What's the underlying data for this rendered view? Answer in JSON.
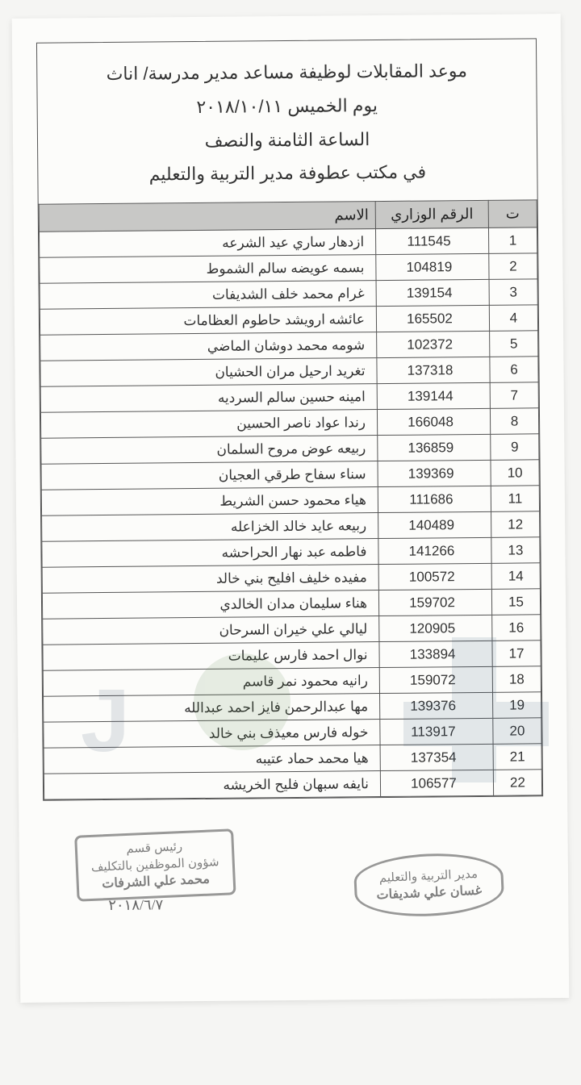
{
  "header": {
    "line1": "موعد المقابلات لوظيفة مساعد مدير مدرسة/ اناث",
    "line2": "يوم الخميس ٢٠١٨/١٠/١١",
    "line3": "الساعة الثامنة والنصف",
    "line4": "في مكتب عطوفة مدير التربية والتعليم"
  },
  "table": {
    "columns": {
      "seq": "ت",
      "ministry_no": "الرقم الوزاري",
      "name": "الاسم"
    },
    "rows": [
      {
        "seq": "1",
        "num": "111545",
        "name": "ازدهار ساري عيد الشرعه"
      },
      {
        "seq": "2",
        "num": "104819",
        "name": "بسمه عويضه سالم الشموط"
      },
      {
        "seq": "3",
        "num": "139154",
        "name": "غرام محمد خلف الشديفات"
      },
      {
        "seq": "4",
        "num": "165502",
        "name": "عائشه ارويشد حاطوم العظامات"
      },
      {
        "seq": "5",
        "num": "102372",
        "name": "شومه محمد دوشان الماضي"
      },
      {
        "seq": "6",
        "num": "137318",
        "name": "تغريد ارحيل مران الحشيان"
      },
      {
        "seq": "7",
        "num": "139144",
        "name": "امينه حسين سالم السرديه"
      },
      {
        "seq": "8",
        "num": "166048",
        "name": "رندا عواد ناصر الحسين"
      },
      {
        "seq": "9",
        "num": "136859",
        "name": "ربيعه عوض مروح السلمان"
      },
      {
        "seq": "10",
        "num": "139369",
        "name": "سناء سفاح طرقي العجيان"
      },
      {
        "seq": "11",
        "num": "111686",
        "name": "هياء محمود حسن الشريط"
      },
      {
        "seq": "12",
        "num": "140489",
        "name": "ربيعه عايد خالد الخزاعله"
      },
      {
        "seq": "13",
        "num": "141266",
        "name": "فاطمه عبد نهار الحراحشه"
      },
      {
        "seq": "14",
        "num": "100572",
        "name": "مفيده خليف افليح بني خالد"
      },
      {
        "seq": "15",
        "num": "159702",
        "name": "هناء سليمان مدان الخالدي"
      },
      {
        "seq": "16",
        "num": "120905",
        "name": "ليالي علي خيران السرحان"
      },
      {
        "seq": "17",
        "num": "133894",
        "name": "نوال احمد فارس عليمات"
      },
      {
        "seq": "18",
        "num": "159072",
        "name": "رانيه محمود نمر قاسم"
      },
      {
        "seq": "19",
        "num": "139376",
        "name": "مها عبدالرحمن فايز احمد عبدالله"
      },
      {
        "seq": "20",
        "num": "113917",
        "name": "خوله فارس معيذف بني خالد"
      },
      {
        "seq": "21",
        "num": "137354",
        "name": "هيا محمد حماد عتيبه"
      },
      {
        "seq": "22",
        "num": "106577",
        "name": "نايفه سبهان فليح الخريشه"
      }
    ]
  },
  "stamps": {
    "right": {
      "line1": "مدير التربية والتعليم",
      "line2": "غسان علي شديفات"
    },
    "left": {
      "line1": "رئيس قسم",
      "line2": "شؤون الموظفين بالتكليف",
      "line3": "محمد علي الشرفات"
    },
    "hand_date": "٢٠١٨/٦/٧"
  },
  "style": {
    "page_bg": "#fcfcfa",
    "body_bg": "#f5f5f3",
    "border_color": "#555",
    "header_bg": "#c8c8c6",
    "text_color": "#333",
    "header_fontsize": 22,
    "cell_fontsize": 17,
    "thead_fontsize": 18
  }
}
